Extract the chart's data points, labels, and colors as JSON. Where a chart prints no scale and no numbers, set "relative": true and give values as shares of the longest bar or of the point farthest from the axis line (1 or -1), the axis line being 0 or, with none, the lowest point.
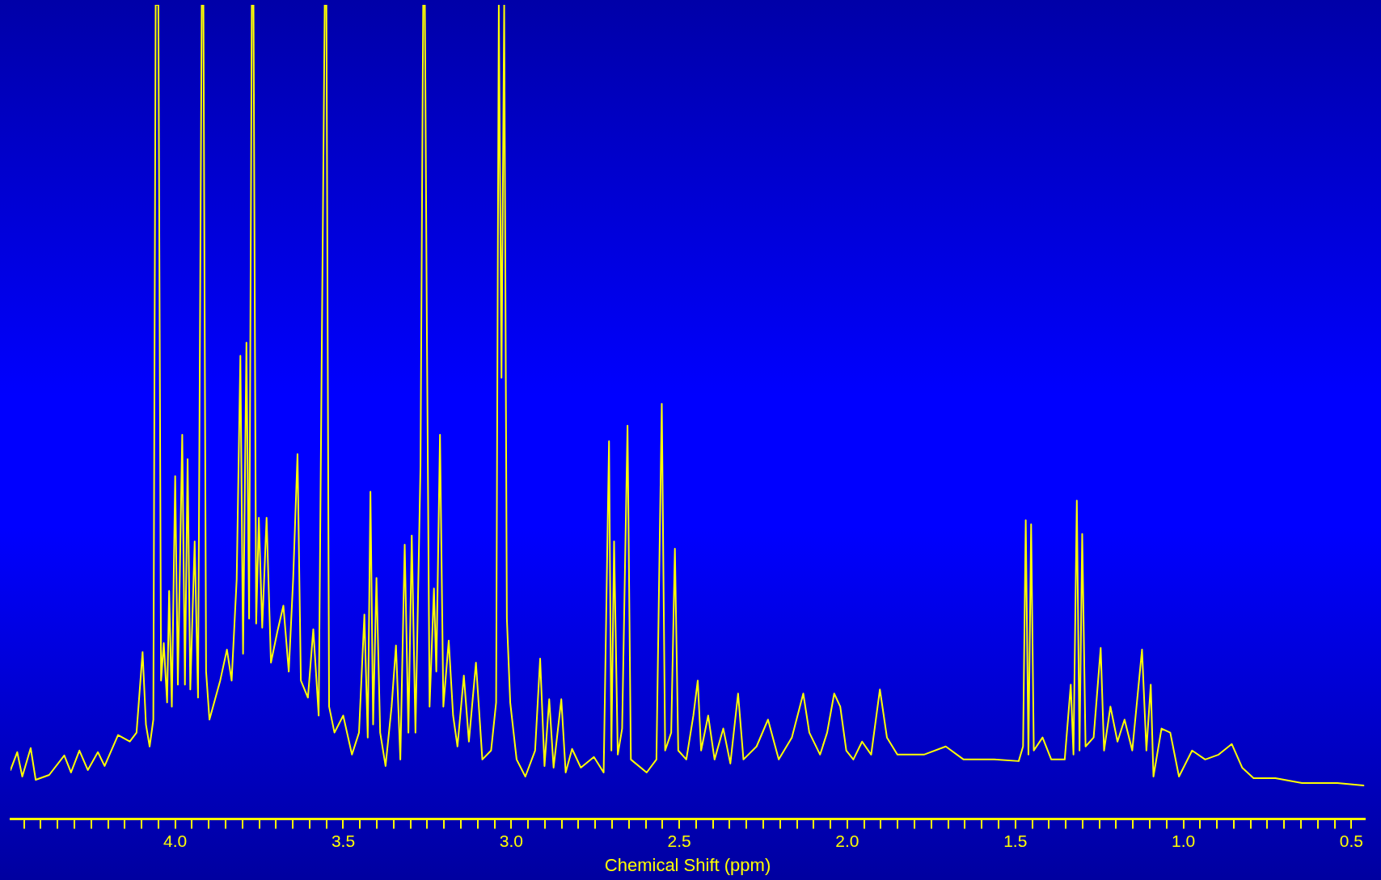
{
  "chart_data": {
    "type": "line",
    "xlabel": "Chemical Shift (ppm)",
    "relative": true,
    "color": "#ffff00",
    "grid": false,
    "legend": false,
    "marker": "none",
    "line_style": "solid",
    "tick_labels": "x",
    "xlim": [
      4.49,
      0.46
    ],
    "xticks": [
      {
        "value": 4.45,
        "label": null
      },
      {
        "value": 4.4,
        "label": null
      },
      {
        "value": 4.35,
        "label": null
      },
      {
        "value": 4.3,
        "label": null
      },
      {
        "value": 4.25,
        "label": null
      },
      {
        "value": 4.2,
        "label": null
      },
      {
        "value": 4.15,
        "label": null
      },
      {
        "value": 4.1,
        "label": null
      },
      {
        "value": 4.05,
        "label": null
      },
      {
        "value": 4,
        "label": "4.0"
      },
      {
        "value": 3.95,
        "label": null
      },
      {
        "value": 3.9,
        "label": null
      },
      {
        "value": 3.85,
        "label": null
      },
      {
        "value": 3.8,
        "label": null
      },
      {
        "value": 3.75,
        "label": null
      },
      {
        "value": 3.7,
        "label": null
      },
      {
        "value": 3.65,
        "label": null
      },
      {
        "value": 3.6,
        "label": null
      },
      {
        "value": 3.55,
        "label": null
      },
      3.5,
      {
        "value": 3.45,
        "label": null
      },
      {
        "value": 3.4,
        "label": null
      },
      {
        "value": 3.35,
        "label": null
      },
      {
        "value": 3.3,
        "label": null
      },
      {
        "value": 3.25,
        "label": null
      },
      {
        "value": 3.2,
        "label": null
      },
      {
        "value": 3.15,
        "label": null
      },
      {
        "value": 3.1,
        "label": null
      },
      {
        "value": 3.05,
        "label": null
      },
      {
        "value": 3,
        "label": "3.0"
      },
      {
        "value": 2.95,
        "label": null
      },
      {
        "value": 2.9,
        "label": null
      },
      {
        "value": 2.85,
        "label": null
      },
      {
        "value": 2.8,
        "label": null
      },
      {
        "value": 2.75,
        "label": null
      },
      {
        "value": 2.7,
        "label": null
      },
      {
        "value": 2.65,
        "label": null
      },
      {
        "value": 2.6,
        "label": null
      },
      {
        "value": 2.55,
        "label": null
      },
      2.5,
      {
        "value": 2.45,
        "label": null
      },
      {
        "value": 2.4,
        "label": null
      },
      {
        "value": 2.35,
        "label": null
      },
      {
        "value": 2.3,
        "label": null
      },
      {
        "value": 2.25,
        "label": null
      },
      {
        "value": 2.2,
        "label": null
      },
      {
        "value": 2.15,
        "label": null
      },
      {
        "value": 2.1,
        "label": null
      },
      {
        "value": 2.05,
        "label": null
      },
      {
        "value": 2,
        "label": "2.0"
      },
      {
        "value": 1.95,
        "label": null
      },
      {
        "value": 1.9,
        "label": null
      },
      {
        "value": 1.85,
        "label": null
      },
      {
        "value": 1.8,
        "label": null
      },
      {
        "value": 1.75,
        "label": null
      },
      {
        "value": 1.7,
        "label": null
      },
      {
        "value": 1.65,
        "label": null
      },
      {
        "value": 1.6,
        "label": null
      },
      {
        "value": 1.55,
        "label": null
      },
      1.5,
      {
        "value": 1.45,
        "label": null
      },
      {
        "value": 1.4,
        "label": null
      },
      {
        "value": 1.35,
        "label": null
      },
      {
        "value": 1.3,
        "label": null
      },
      {
        "value": 1.25,
        "label": null
      },
      {
        "value": 1.2,
        "label": null
      },
      {
        "value": 1.15,
        "label": null
      },
      {
        "value": 1.1,
        "label": null
      },
      {
        "value": 1.05,
        "label": null
      },
      {
        "value": 1,
        "label": "1.0"
      },
      {
        "value": 0.95,
        "label": null
      },
      {
        "value": 0.9,
        "label": null
      },
      {
        "value": 0.85,
        "label": null
      },
      {
        "value": 0.8,
        "label": null
      },
      {
        "value": 0.75,
        "label": null
      },
      {
        "value": 0.7,
        "label": null
      },
      {
        "value": 0.65,
        "label": null
      },
      {
        "value": 0.6,
        "label": null
      },
      {
        "value": 0.55,
        "label": null
      },
      0.5
    ],
    "x": [
      4.49,
      4.47,
      4.455,
      4.43,
      4.415,
      4.375,
      4.33,
      4.31,
      4.285,
      4.26,
      4.23,
      4.21,
      4.17,
      4.135,
      4.115,
      4.097,
      4.087,
      4.076,
      4.065,
      4.058,
      4.05,
      4.042,
      4.034,
      4.024,
      4.018,
      4.01,
      4.0,
      3.992,
      3.979,
      3.971,
      3.963,
      3.955,
      3.942,
      3.932,
      3.921,
      3.916,
      3.908,
      3.898,
      3.866,
      3.846,
      3.832,
      3.817,
      3.806,
      3.798,
      3.788,
      3.78,
      3.772,
      3.767,
      3.759,
      3.751,
      3.741,
      3.728,
      3.715,
      3.696,
      3.678,
      3.662,
      3.649,
      3.636,
      3.626,
      3.605,
      3.589,
      3.573,
      3.555,
      3.55,
      3.542,
      3.526,
      3.5,
      3.474,
      3.453,
      3.437,
      3.427,
      3.419,
      3.411,
      3.401,
      3.39,
      3.374,
      3.356,
      3.343,
      3.33,
      3.317,
      3.306,
      3.296,
      3.285,
      3.27,
      3.262,
      3.257,
      3.251,
      3.243,
      3.23,
      3.223,
      3.212,
      3.202,
      3.186,
      3.173,
      3.16,
      3.141,
      3.126,
      3.105,
      3.086,
      3.06,
      3.045,
      3.037,
      3.029,
      3.021,
      3.013,
      3.003,
      2.984,
      2.958,
      2.929,
      2.914,
      2.901,
      2.887,
      2.874,
      2.851,
      2.838,
      2.819,
      2.793,
      2.754,
      2.725,
      2.709,
      2.702,
      2.694,
      2.683,
      2.67,
      2.654,
      2.644,
      2.597,
      2.568,
      2.552,
      2.542,
      2.524,
      2.513,
      2.503,
      2.479,
      2.458,
      2.445,
      2.435,
      2.414,
      2.395,
      2.369,
      2.348,
      2.325,
      2.309,
      2.27,
      2.236,
      2.204,
      2.165,
      2.131,
      2.113,
      2.081,
      2.06,
      2.039,
      2.021,
      2.003,
      1.982,
      1.956,
      1.929,
      1.903,
      1.882,
      1.851,
      1.772,
      1.707,
      1.654,
      1.563,
      1.49,
      1.477,
      1.469,
      1.461,
      1.453,
      1.445,
      1.419,
      1.393,
      1.353,
      1.335,
      1.327,
      1.317,
      1.309,
      1.301,
      1.291,
      1.267,
      1.246,
      1.236,
      1.217,
      1.196,
      1.175,
      1.152,
      1.123,
      1.11,
      1.097,
      1.089,
      1.065,
      1.039,
      1.013,
      0.974,
      0.935,
      0.895,
      0.856,
      0.825,
      0.791,
      0.726,
      0.647,
      0.542,
      0.464
    ],
    "values": [
      0.06,
      0.082,
      0.052,
      0.087,
      0.048,
      0.054,
      0.078,
      0.057,
      0.084,
      0.06,
      0.082,
      0.065,
      0.103,
      0.095,
      0.106,
      0.205,
      0.116,
      0.089,
      0.122,
      1,
      1,
      0.17,
      0.216,
      0.143,
      0.28,
      0.138,
      0.421,
      0.165,
      0.472,
      0.165,
      0.442,
      0.159,
      0.341,
      0.149,
      1,
      1,
      0.181,
      0.122,
      0.17,
      0.208,
      0.17,
      0.294,
      0.569,
      0.203,
      0.585,
      0.246,
      1,
      1,
      0.24,
      0.37,
      0.235,
      0.37,
      0.192,
      0.23,
      0.262,
      0.181,
      0.294,
      0.448,
      0.17,
      0.149,
      0.233,
      0.127,
      1,
      1,
      0.138,
      0.106,
      0.127,
      0.079,
      0.106,
      0.251,
      0.1,
      0.402,
      0.116,
      0.296,
      0.106,
      0.065,
      0.138,
      0.213,
      0.073,
      0.337,
      0.106,
      0.348,
      0.106,
      0.434,
      1,
      1,
      0.601,
      0.138,
      0.283,
      0.181,
      0.472,
      0.138,
      0.219,
      0.127,
      0.089,
      0.176,
      0.095,
      0.192,
      0.073,
      0.084,
      0.143,
      1,
      0.542,
      1,
      0.246,
      0.143,
      0.073,
      0.052,
      0.084,
      0.197,
      0.065,
      0.147,
      0.063,
      0.147,
      0.057,
      0.086,
      0.063,
      0.076,
      0.057,
      0.464,
      0.084,
      0.341,
      0.079,
      0.111,
      0.483,
      0.073,
      0.057,
      0.073,
      0.51,
      0.084,
      0.106,
      0.332,
      0.084,
      0.073,
      0.127,
      0.17,
      0.084,
      0.127,
      0.073,
      0.111,
      0.068,
      0.154,
      0.073,
      0.089,
      0.122,
      0.073,
      0.1,
      0.154,
      0.106,
      0.079,
      0.106,
      0.154,
      0.138,
      0.084,
      0.073,
      0.095,
      0.079,
      0.159,
      0.1,
      0.079,
      0.079,
      0.089,
      0.073,
      0.073,
      0.071,
      0.089,
      0.367,
      0.079,
      0.362,
      0.084,
      0.1,
      0.073,
      0.073,
      0.165,
      0.079,
      0.391,
      0.084,
      0.35,
      0.089,
      0.1,
      0.21,
      0.084,
      0.138,
      0.095,
      0.122,
      0.084,
      0.208,
      0.084,
      0.165,
      0.052,
      0.111,
      0.106,
      0.052,
      0.084,
      0.073,
      0.079,
      0.092,
      0.063,
      0.05,
      0.05,
      0.044,
      0.044,
      0.041
    ]
  }
}
